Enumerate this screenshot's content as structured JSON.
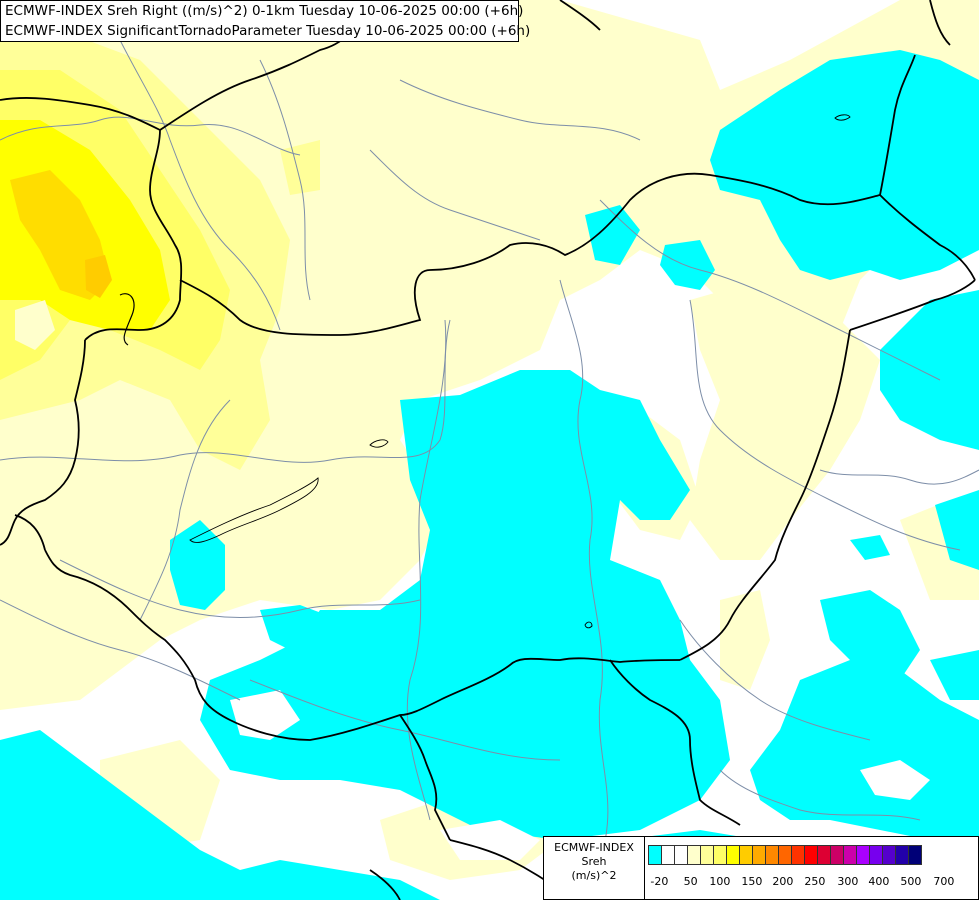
{
  "header": {
    "line1": "ECMWF-INDEX Sreh Right ((m/s)^2) 0-1km Tuesday 10-06-2025 00:00 (+6h)",
    "line2": "ECMWF-INDEX SignificantTornadoParameter Tuesday 10-06-2025 00:00 (+6h)"
  },
  "legend": {
    "title": "ECMWF-INDEX",
    "param": "Sreh",
    "unit": "(m/s)^2",
    "colors": [
      "#00ffff",
      "#ffffff",
      "#ffffff",
      "#ffffcc",
      "#ffff99",
      "#ffff66",
      "#ffff00",
      "#ffcc00",
      "#ffaa00",
      "#ff8800",
      "#ff6600",
      "#ff3300",
      "#ff0000",
      "#dd0033",
      "#cc0066",
      "#cc00aa",
      "#aa00ff",
      "#7700ee",
      "#5500cc",
      "#2200aa",
      "#000077"
    ],
    "ticks": [
      "-20",
      "50",
      "100",
      "150",
      "200",
      "250",
      "300",
      "400",
      "500",
      "700"
    ]
  }
}
